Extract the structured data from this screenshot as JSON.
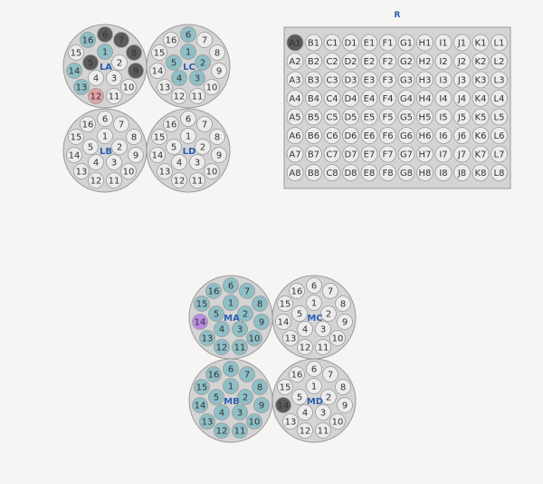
{
  "colors": {
    "empty": "#ececec",
    "filled": "#8fbfc6",
    "dark": "#5b5b5b",
    "red": "#e0a3a3",
    "purple": "#b98be0",
    "plate": "#d4d4d4",
    "plate_border": "#9a9a9a",
    "label_blue": "#2a5fb0"
  },
  "rack": {
    "title": "R",
    "rows": [
      "1",
      "2",
      "3",
      "4",
      "5",
      "6",
      "7",
      "8"
    ],
    "cols": [
      "A",
      "B",
      "C",
      "D",
      "E",
      "F",
      "G",
      "H",
      "I",
      "J",
      "K",
      "L"
    ],
    "highlighted": {
      "A1": "dark"
    }
  },
  "clusters": [
    {
      "label": "LA",
      "wells": {
        "1": "filled",
        "2": "empty",
        "3": "empty",
        "4": "empty",
        "5": "dark",
        "6": "dark",
        "7": "dark",
        "8": "dark",
        "9": "dark",
        "10": "empty",
        "11": "empty",
        "12": "red",
        "13": "filled",
        "14": "filled",
        "15": "empty",
        "16": "filled"
      }
    },
    {
      "label": "LC",
      "wells": {
        "1": "filled",
        "2": "filled",
        "3": "filled",
        "4": "filled",
        "5": "filled",
        "6": "filled",
        "7": "empty",
        "8": "empty",
        "9": "empty",
        "10": "empty",
        "11": "empty",
        "12": "empty",
        "13": "empty",
        "14": "empty",
        "15": "empty",
        "16": "empty"
      }
    },
    {
      "label": "LB",
      "wells": {}
    },
    {
      "label": "LD",
      "wells": {}
    },
    {
      "label": "MA",
      "wells": {
        "1": "filled",
        "2": "filled",
        "3": "filled",
        "4": "filled",
        "5": "filled",
        "6": "filled",
        "7": "filled",
        "8": "filled",
        "9": "filled",
        "10": "filled",
        "11": "filled",
        "12": "filled",
        "13": "filled",
        "14": "purple",
        "15": "filled",
        "16": "filled"
      }
    },
    {
      "label": "MC",
      "wells": {}
    },
    {
      "label": "MB",
      "wells": {
        "1": "filled",
        "2": "filled",
        "3": "filled",
        "4": "filled",
        "5": "filled",
        "6": "filled",
        "7": "filled",
        "8": "filled",
        "9": "filled",
        "10": "filled",
        "11": "filled",
        "12": "filled",
        "13": "filled",
        "14": "filled",
        "15": "filled",
        "16": "filled"
      }
    },
    {
      "label": "MD",
      "wells": {
        "14": "dark"
      }
    }
  ]
}
